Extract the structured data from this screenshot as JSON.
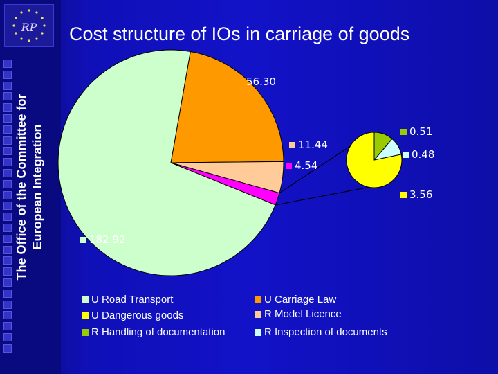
{
  "header": {
    "title": "Cost structure of IOs in carriage of goods",
    "side_line1": "The Office of the Committee for",
    "side_line2": "European Integration",
    "logo_text": "RP"
  },
  "chart_data": {
    "type": "pie",
    "title": "Cost structure of IOs in carriage of goods",
    "main_pie": {
      "slices": [
        {
          "name": "U Road Transport",
          "value": 182.92,
          "label": "182.92",
          "color": "#ccffcc"
        },
        {
          "name": "U Carriage Law",
          "value": 56.3,
          "label": "56.30",
          "color": "#ff9900"
        },
        {
          "name": "R Model Licence",
          "value": 11.44,
          "label": "11.44",
          "color": "#ffcc99"
        },
        {
          "name": "U Dangerous goods",
          "value": 4.54,
          "label": "4.54",
          "color": "#ff00ff"
        }
      ]
    },
    "sub_pie": {
      "slices": [
        {
          "name": "R Handling of documentation",
          "value": 0.51,
          "label": "0.51",
          "color": "#99cc00"
        },
        {
          "name": "R Inspection of documents",
          "value": 0.48,
          "label": "0.48",
          "color": "#ccffff"
        },
        {
          "name": "U Dangerous goods",
          "value": 3.56,
          "label": "3.56",
          "color": "#ffff00"
        }
      ]
    },
    "legend": [
      {
        "text": "U Road Transport",
        "color": "#ccffcc"
      },
      {
        "text": "U Carriage Law",
        "color": "#ff9900"
      },
      {
        "text": "U Dangerous goods",
        "color": "#ffff00"
      },
      {
        "text": "R Model Licence",
        "color": "#ffcc99"
      },
      {
        "text": "R Handling of documentation",
        "color": "#99cc00"
      },
      {
        "text": "R Inspection of documents",
        "color": "#ccffff"
      }
    ],
    "legend_placement": "bottom"
  }
}
